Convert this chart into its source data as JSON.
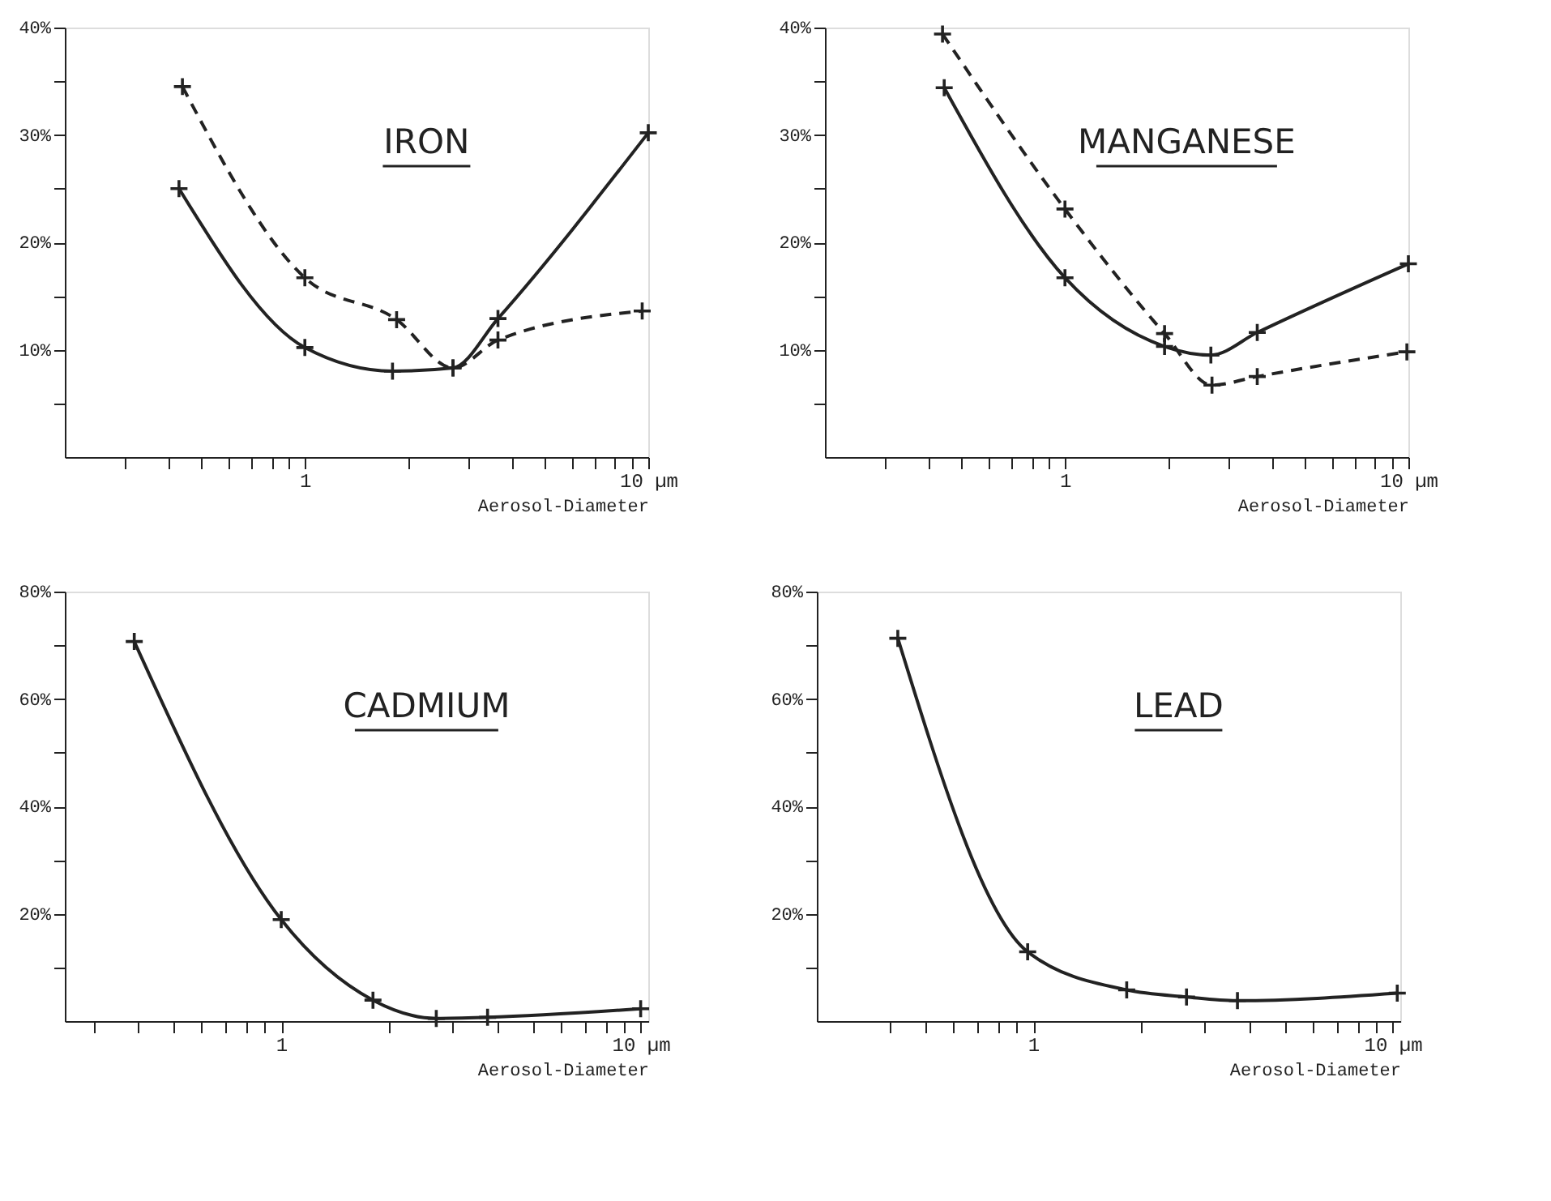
{
  "chart_data": [
    {
      "type": "line",
      "title": "IRON",
      "xlabel": "Aerosol-Diameter",
      "log": "x",
      "grid": false,
      "legend": false,
      "marker": "cross",
      "xlim": [
        0.2,
        10
      ],
      "xticks": [
        {
          "value": 0.3,
          "label": null
        },
        {
          "value": 0.4,
          "label": null
        },
        {
          "value": 0.5,
          "label": null
        },
        {
          "value": 0.6,
          "label": null
        },
        {
          "value": 0.7,
          "label": null
        },
        {
          "value": 0.8,
          "label": null
        },
        {
          "value": 0.9,
          "label": null
        },
        1,
        {
          "value": 2,
          "label": null
        },
        {
          "value": 3,
          "label": null
        },
        {
          "value": 4,
          "label": null
        },
        {
          "value": 5,
          "label": null
        },
        {
          "value": 6,
          "label": null
        },
        {
          "value": 7,
          "label": null
        },
        {
          "value": 8,
          "label": null
        },
        {
          "value": 9,
          "label": null
        },
        {
          "value": 10,
          "label": "10 µm"
        }
      ],
      "ylim": [
        0,
        40
      ],
      "yticks": [
        {
          "value": 5,
          "label": null
        },
        {
          "value": 10,
          "label": "10%"
        },
        {
          "value": 15,
          "label": null
        },
        {
          "value": 20,
          "label": "20%"
        },
        {
          "value": 25,
          "label": null
        },
        {
          "value": 30,
          "label": "30%"
        },
        {
          "value": 35,
          "label": null
        },
        {
          "value": 40,
          "label": "40%"
        }
      ],
      "series": [
        {
          "color": "#222222",
          "line_style": "solid",
          "x": [
            0.43,
            1.0,
            1.8,
            2.7,
            3.65,
            10
          ],
          "values": [
            25.0,
            10.2,
            8.0,
            8.3,
            12.9,
            30.2
          ]
        },
        {
          "color": "#222222",
          "line_style": "dashed",
          "x": [
            0.44,
            1.0,
            1.85,
            2.7,
            3.65,
            9.6
          ],
          "values": [
            34.5,
            16.7,
            12.8,
            8.3,
            10.9,
            13.6
          ]
        }
      ]
    },
    {
      "type": "line",
      "title": "MANGANESE",
      "xlabel": "Aerosol-Diameter",
      "log": "x",
      "grid": false,
      "legend": false,
      "marker": "cross",
      "xlim": [
        0.2,
        10
      ],
      "xticks": [
        {
          "value": 0.3,
          "label": null
        },
        {
          "value": 0.4,
          "label": null
        },
        {
          "value": 0.5,
          "label": null
        },
        {
          "value": 0.6,
          "label": null
        },
        {
          "value": 0.7,
          "label": null
        },
        {
          "value": 0.8,
          "label": null
        },
        {
          "value": 0.9,
          "label": null
        },
        1,
        {
          "value": 2,
          "label": null
        },
        {
          "value": 3,
          "label": null
        },
        {
          "value": 4,
          "label": null
        },
        {
          "value": 5,
          "label": null
        },
        {
          "value": 6,
          "label": null
        },
        {
          "value": 7,
          "label": null
        },
        {
          "value": 8,
          "label": null
        },
        {
          "value": 9,
          "label": null
        },
        {
          "value": 10,
          "label": "10 µm"
        }
      ],
      "ylim": [
        0,
        40
      ],
      "yticks": [
        {
          "value": 5,
          "label": null
        },
        {
          "value": 10,
          "label": "10%"
        },
        {
          "value": 15,
          "label": null
        },
        {
          "value": 20,
          "label": "20%"
        },
        {
          "value": 25,
          "label": null
        },
        {
          "value": 30,
          "label": "30%"
        },
        {
          "value": 35,
          "label": null
        },
        {
          "value": 40,
          "label": "40%"
        }
      ],
      "series": [
        {
          "color": "#222222",
          "line_style": "solid",
          "x": [
            0.445,
            1.0,
            1.95,
            2.66,
            3.63,
            10
          ],
          "values": [
            34.4,
            16.7,
            10.3,
            9.5,
            11.6,
            18.0
          ]
        },
        {
          "color": "#222222",
          "line_style": "dashed",
          "x": [
            0.44,
            1.0,
            1.95,
            2.68,
            3.63,
            9.9
          ],
          "values": [
            39.4,
            23.1,
            11.5,
            6.7,
            7.5,
            9.8
          ]
        }
      ]
    },
    {
      "type": "line",
      "title": "CADMIUM",
      "xlabel": "Aerosol-Diameter",
      "log": "x",
      "grid": false,
      "legend": false,
      "marker": "cross",
      "xlim": [
        0.25,
        10.5
      ],
      "xticks": [
        {
          "value": 0.3,
          "label": null
        },
        {
          "value": 0.4,
          "label": null
        },
        {
          "value": 0.5,
          "label": null
        },
        {
          "value": 0.6,
          "label": null
        },
        {
          "value": 0.7,
          "label": null
        },
        {
          "value": 0.8,
          "label": null
        },
        {
          "value": 0.9,
          "label": null
        },
        1,
        {
          "value": 2,
          "label": null
        },
        {
          "value": 3,
          "label": null
        },
        {
          "value": 4,
          "label": null
        },
        {
          "value": 5,
          "label": null
        },
        {
          "value": 6,
          "label": null
        },
        {
          "value": 7,
          "label": null
        },
        {
          "value": 8,
          "label": null
        },
        {
          "value": 9,
          "label": null
        },
        {
          "value": 10,
          "label": "10 µm"
        }
      ],
      "ylim": [
        0,
        80
      ],
      "yticks": [
        {
          "value": 10,
          "label": null
        },
        {
          "value": 20,
          "label": "20%"
        },
        {
          "value": 30,
          "label": null
        },
        {
          "value": 40,
          "label": "40%"
        },
        {
          "value": 50,
          "label": null
        },
        {
          "value": 60,
          "label": "60%"
        },
        {
          "value": 70,
          "label": null
        },
        {
          "value": 80,
          "label": "80%"
        }
      ],
      "series": [
        {
          "color": "#222222",
          "line_style": "solid",
          "x": [
            0.39,
            1.0,
            1.8,
            2.7,
            3.75,
            10
          ],
          "values": [
            70.7,
            18.9,
            3.9,
            0.5,
            0.7,
            2.3
          ]
        }
      ]
    },
    {
      "type": "line",
      "title": "LEAD",
      "xlabel": "Aerosol-Diameter",
      "log": "x",
      "grid": false,
      "legend": false,
      "marker": "cross",
      "xlim": [
        0.25,
        10.5
      ],
      "xticks": [
        {
          "value": 0.4,
          "label": null
        },
        {
          "value": 0.5,
          "label": null
        },
        {
          "value": 0.6,
          "label": null
        },
        {
          "value": 0.7,
          "label": null
        },
        {
          "value": 0.8,
          "label": null
        },
        {
          "value": 0.9,
          "label": null
        },
        1,
        {
          "value": 2,
          "label": null
        },
        {
          "value": 3,
          "label": null
        },
        {
          "value": 4,
          "label": null
        },
        {
          "value": 5,
          "label": null
        },
        {
          "value": 6,
          "label": null
        },
        {
          "value": 7,
          "label": null
        },
        {
          "value": 8,
          "label": null
        },
        {
          "value": 9,
          "label": null
        },
        {
          "value": 10,
          "label": "10 µm"
        }
      ],
      "ylim": [
        0,
        80
      ],
      "yticks": [
        {
          "value": 10,
          "label": null
        },
        {
          "value": 20,
          "label": "20%"
        },
        {
          "value": 30,
          "label": null
        },
        {
          "value": 40,
          "label": "40%"
        },
        {
          "value": 50,
          "label": null
        },
        {
          "value": 60,
          "label": "60%"
        },
        {
          "value": 70,
          "label": null
        },
        {
          "value": 80,
          "label": "80%"
        }
      ],
      "series": [
        {
          "color": "#222222",
          "line_style": "solid",
          "x": [
            0.42,
            0.965,
            1.82,
            2.67,
            3.7,
            10.3
          ],
          "values": [
            71.3,
            12.9,
            5.8,
            4.5,
            3.8,
            5.2
          ]
        }
      ]
    }
  ]
}
